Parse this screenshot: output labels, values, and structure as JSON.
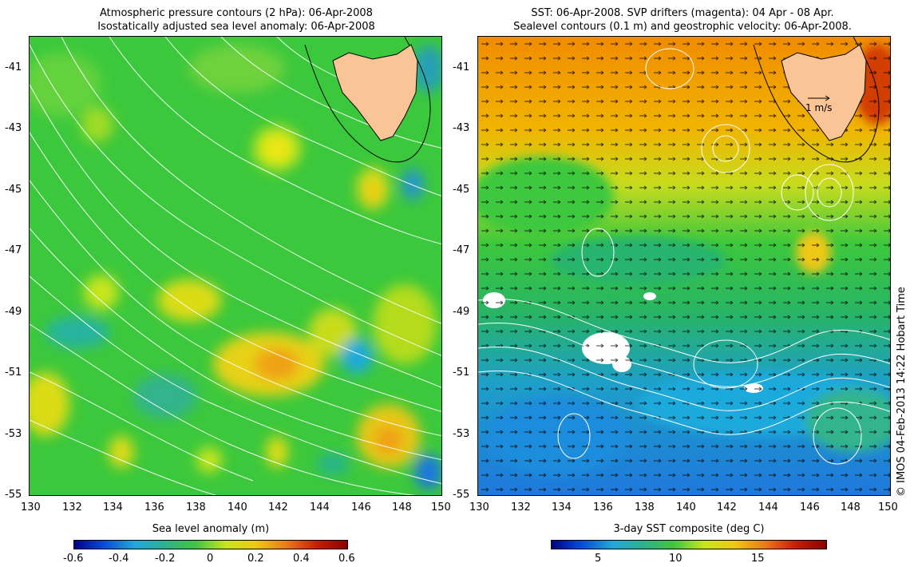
{
  "left_panel": {
    "title_line1": "Atmospheric pressure contours (2 hPa): 06-Apr-2008",
    "title_line2": "Isostatically adjusted sea level anomaly: 06-Apr-2008",
    "colorbar_title": "Sea level anomaly (m)",
    "colorbar_ticks": [
      "-0.6",
      "-0.4",
      "-0.2",
      "0",
      "0.2",
      "0.4",
      "0.6"
    ]
  },
  "right_panel": {
    "title_line1": "SST: 06-Apr-2008. SVP drifters (magenta): 04 Apr - 08 Apr.",
    "title_line2": "Sealevel contours (0.1 m) and geostrophic velocity: 06-Apr-2008.",
    "colorbar_title": "3-day SST composite (deg C)",
    "colorbar_ticks": [
      "5",
      "10",
      "15"
    ],
    "velocity_scale_label": "1 m/s"
  },
  "lat_ticks": [
    "-41",
    "-43",
    "-45",
    "-47",
    "-49",
    "-51",
    "-53",
    "-55"
  ],
  "lon_ticks": [
    "130",
    "132",
    "134",
    "136",
    "138",
    "140",
    "142",
    "144",
    "146",
    "148",
    "150"
  ],
  "credit": "© IMOS 04-Feb-2013 14:22 Hobart Time",
  "colors": {
    "land": "#f9c496",
    "slanomaly_background": "#3cc83c",
    "sst_warm": "#f0a000",
    "sst_cold": "#1e90ff",
    "contour": "#ffffff"
  }
}
